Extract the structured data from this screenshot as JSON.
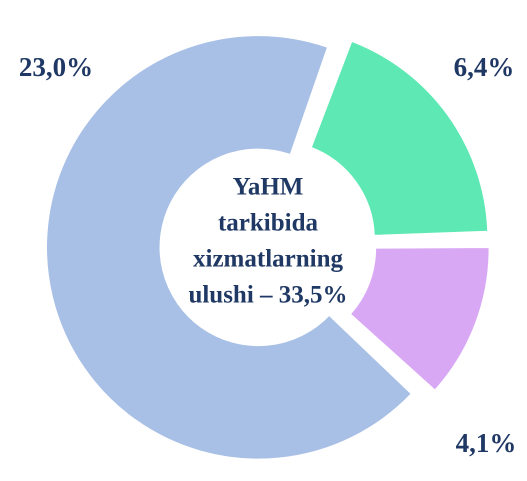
{
  "chart_data": {
    "type": "donut",
    "title": [
      "YaHM",
      "tarkibida",
      "xizmatlarning",
      "ulushi – 33,5%"
    ],
    "categories": [
      null,
      null,
      null
    ],
    "values": [
      6.4,
      4.1,
      23.0
    ],
    "value_labels": [
      "6,4%",
      "4,1%",
      "23,0%"
    ],
    "colors": [
      "#5ee8b4",
      "#d9a8f5",
      "#a8bfe6"
    ]
  }
}
